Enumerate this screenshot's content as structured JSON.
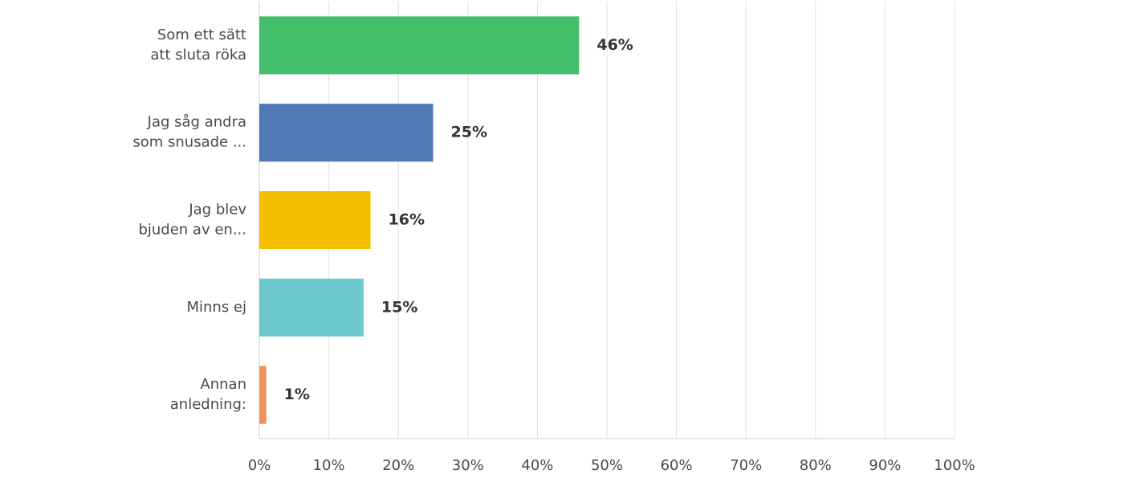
{
  "chart_data": {
    "type": "barh",
    "categories": [
      [
        "Som ett sätt",
        "att sluta röka"
      ],
      [
        "Jag såg andra",
        "som snusade ..."
      ],
      [
        "Jag blev",
        "bjuden av en..."
      ],
      [
        "Minns ej"
      ],
      [
        "Annan",
        "anledning:"
      ]
    ],
    "values": [
      46,
      25,
      16,
      15,
      1
    ],
    "value_labels": [
      "46%",
      "25%",
      "16%",
      "15%",
      "1%"
    ],
    "colors": [
      "#43bf6c",
      "#4e79b5",
      "#f6c000",
      "#6cc8cc",
      "#f0905a"
    ],
    "xlim": [
      0,
      100
    ],
    "xticks": [
      {
        "value": 0,
        "label": "0%"
      },
      {
        "value": 10,
        "label": "10%"
      },
      {
        "value": 20,
        "label": "20%"
      },
      {
        "value": 30,
        "label": "30%"
      },
      {
        "value": 40,
        "label": "40%"
      },
      {
        "value": 50,
        "label": "50%"
      },
      {
        "value": 60,
        "label": "60%"
      },
      {
        "value": 70,
        "label": "70%"
      },
      {
        "value": 80,
        "label": "80%"
      },
      {
        "value": 90,
        "label": "90%"
      },
      {
        "value": 100,
        "label": "100%"
      }
    ],
    "grid": true
  }
}
